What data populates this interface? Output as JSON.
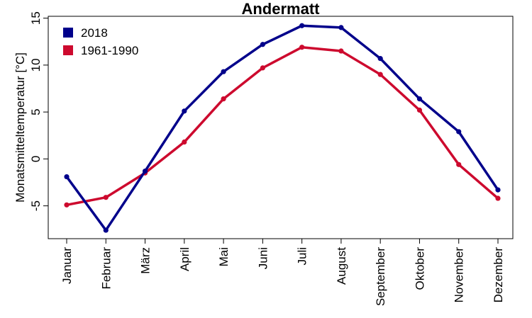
{
  "chart_data": {
    "type": "line",
    "title": "Andermatt",
    "xlabel": "",
    "ylabel": "Monatsmitteltemperatur [°C]",
    "ylim": [
      -8.5,
      15.2
    ],
    "yticks": [
      -5,
      0,
      5,
      10,
      15
    ],
    "categories": [
      "Januar",
      "Februar",
      "März",
      "April",
      "Mai",
      "Juni",
      "Juli",
      "August",
      "September",
      "Oktober",
      "November",
      "Dezember"
    ],
    "series": [
      {
        "name": "2018",
        "color": "#00008B",
        "values": [
          -1.9,
          -7.6,
          -1.3,
          5.1,
          9.3,
          12.2,
          14.2,
          14.0,
          10.7,
          6.4,
          2.9,
          -3.3
        ]
      },
      {
        "name": "1961-1990",
        "color": "#CD0A2E",
        "values": [
          -4.9,
          -4.1,
          -1.5,
          1.8,
          6.4,
          9.7,
          11.9,
          11.5,
          9.0,
          5.2,
          -0.6,
          -4.2
        ]
      }
    ],
    "legend": {
      "position": "top-left"
    }
  }
}
